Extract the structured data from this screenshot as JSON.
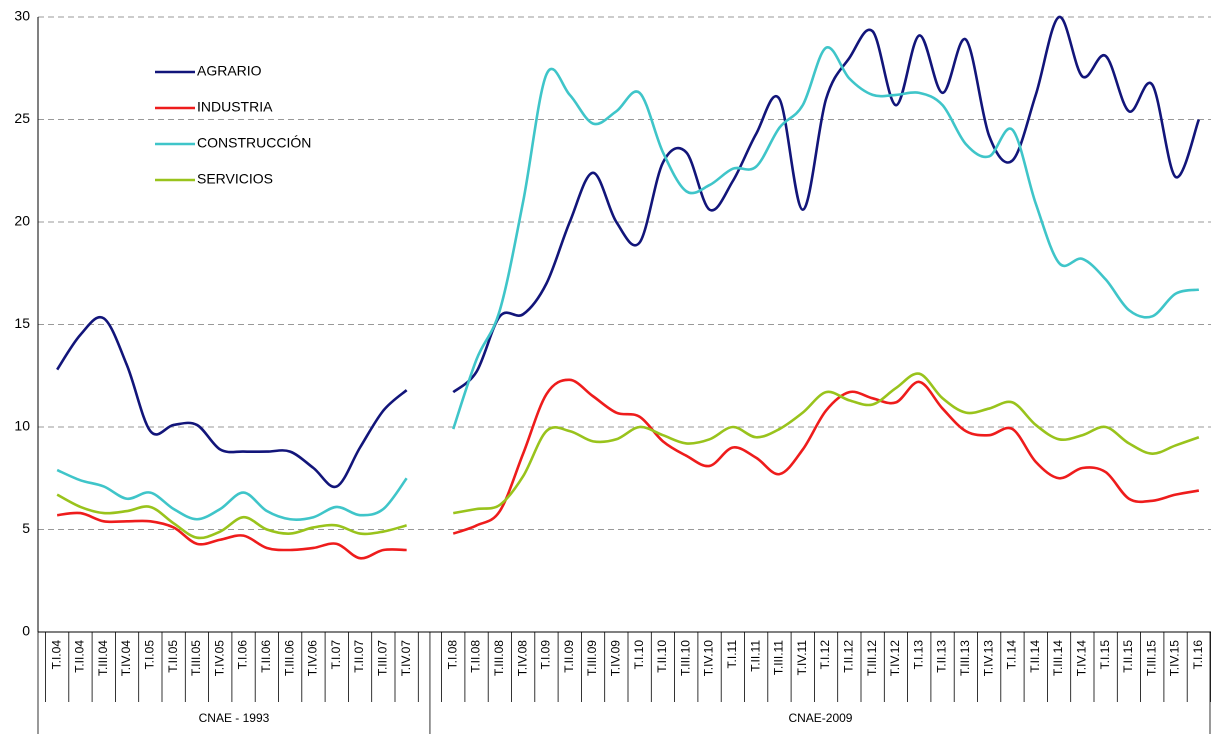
{
  "chart_data": {
    "type": "line",
    "categories": [
      "T.I.04",
      "T.II.04",
      "T.III.04",
      "T.IV.04",
      "T.I.05",
      "T.II.05",
      "T.III.05",
      "T.IV.05",
      "T.I.06",
      "T.II.06",
      "T.III.06",
      "T.IV.06",
      "T.I.07",
      "T.II.07",
      "T.III.07",
      "T.IV.07",
      null,
      "T.I.08",
      "T.II.08",
      "T.III.08",
      "T.IV.08",
      "T.I.09",
      "T.II.09",
      "T.III.09",
      "T.IV.09",
      "T.I.10",
      "T.II.10",
      "T.III.10",
      "T.IV.10",
      "T.I.11",
      "T.II.11",
      "T.III.11",
      "T.IV.11",
      "T.I.12",
      "T.II.12",
      "T.III.12",
      "T.IV.12",
      "T.I.13",
      "T.II.13",
      "T.III.13",
      "T.IV.13",
      "T.I.14",
      "T.II.14",
      "T.III.14",
      "T.IV.14",
      "T.I.15",
      "T.II.15",
      "T.III.15",
      "T.IV.15",
      "T.I.16"
    ],
    "groups": [
      "CNAE - 1993",
      "CNAE-2009"
    ],
    "series": [
      {
        "name": "AGRARIO",
        "color": "#12157a",
        "values": [
          12.8,
          14.5,
          15.3,
          13.0,
          9.8,
          10.1,
          10.1,
          8.9,
          8.8,
          8.8,
          8.8,
          8.0,
          7.1,
          9.0,
          10.8,
          11.8,
          null,
          11.7,
          12.7,
          15.4,
          15.5,
          17.0,
          20.0,
          22.4,
          20.0,
          19.0,
          22.9,
          23.4,
          20.6,
          22.0,
          24.3,
          26.0,
          20.6,
          26.0,
          28.0,
          29.3,
          25.7,
          29.1,
          26.3,
          28.9,
          24.2,
          23.0,
          26.2,
          30.0,
          27.1,
          28.1,
          25.4,
          26.7,
          22.2,
          25.0
        ]
      },
      {
        "name": "INDUSTRIA",
        "color": "#ee1c1c",
        "values": [
          5.7,
          5.8,
          5.4,
          5.4,
          5.4,
          5.1,
          4.3,
          4.5,
          4.7,
          4.1,
          4.0,
          4.1,
          4.3,
          3.6,
          4.0,
          4.0,
          null,
          4.8,
          5.2,
          5.9,
          8.7,
          11.6,
          12.3,
          11.5,
          10.7,
          10.5,
          9.3,
          8.6,
          8.1,
          9.0,
          8.5,
          7.7,
          8.9,
          10.8,
          11.7,
          11.4,
          11.2,
          12.2,
          10.9,
          9.8,
          9.6,
          9.9,
          8.3,
          7.5,
          8.0,
          7.8,
          6.5,
          6.4,
          6.7,
          6.9
        ]
      },
      {
        "name": "CONSTRUCCIÓN",
        "color": "#3fc5c9",
        "values": [
          7.9,
          7.4,
          7.1,
          6.5,
          6.8,
          6.0,
          5.5,
          6.0,
          6.8,
          5.9,
          5.5,
          5.6,
          6.1,
          5.7,
          6.0,
          7.5,
          null,
          9.9,
          13.3,
          15.7,
          21.0,
          27.2,
          26.2,
          24.8,
          25.4,
          26.3,
          23.4,
          21.5,
          21.8,
          22.6,
          22.7,
          24.6,
          25.7,
          28.5,
          27.0,
          26.2,
          26.2,
          26.3,
          25.7,
          23.8,
          23.2,
          24.5,
          20.9,
          18.0,
          18.2,
          17.2,
          15.7,
          15.4,
          16.5,
          16.7
        ]
      },
      {
        "name": "SERVICIOS",
        "color": "#99c31c",
        "values": [
          6.7,
          6.1,
          5.8,
          5.9,
          6.1,
          5.3,
          4.6,
          4.9,
          5.6,
          5.0,
          4.8,
          5.1,
          5.2,
          4.8,
          4.9,
          5.2,
          null,
          5.8,
          6.0,
          6.2,
          7.6,
          9.8,
          9.8,
          9.3,
          9.4,
          10.0,
          9.6,
          9.2,
          9.4,
          10.0,
          9.5,
          9.9,
          10.7,
          11.7,
          11.3,
          11.1,
          11.9,
          12.6,
          11.4,
          10.7,
          10.9,
          11.2,
          10.1,
          9.4,
          9.6,
          10.0,
          9.2,
          8.7,
          9.1,
          9.5
        ]
      }
    ],
    "ylim": [
      0,
      30
    ],
    "yticks": [
      0,
      5,
      10,
      15,
      20,
      25,
      30
    ],
    "grid": true,
    "legend": "upper-left"
  }
}
